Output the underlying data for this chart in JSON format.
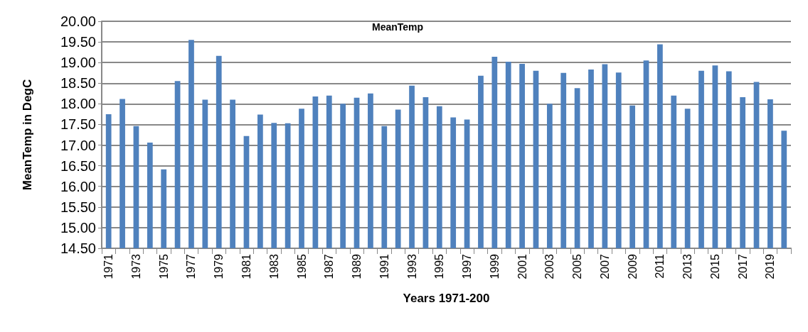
{
  "chart_data": {
    "type": "bar",
    "title": "MeanTemp",
    "xlabel": "Years 1971-200",
    "ylabel": "MeanTemp in DegC",
    "categories": [
      "1971",
      null,
      "1973",
      null,
      "1975",
      null,
      "1977",
      null,
      "1979",
      null,
      "1981",
      null,
      "1983",
      null,
      "1985",
      null,
      "1987",
      null,
      "1989",
      null,
      "1991",
      null,
      "1993",
      null,
      "1995",
      null,
      "1997",
      null,
      "1999",
      null,
      "2001",
      null,
      "2003",
      null,
      "2005",
      null,
      "2007",
      null,
      "2009",
      null,
      "2011",
      null,
      "2013",
      null,
      "2015",
      null,
      "2017",
      null,
      "2019",
      null
    ],
    "values": [
      17.75,
      18.12,
      17.46,
      17.06,
      16.41,
      18.55,
      19.55,
      18.1,
      19.16,
      18.1,
      17.22,
      17.74,
      17.54,
      17.53,
      17.88,
      18.18,
      18.2,
      18.0,
      18.15,
      18.25,
      17.46,
      17.86,
      18.44,
      18.16,
      17.94,
      17.67,
      17.62,
      18.68,
      19.14,
      19.02,
      18.97,
      18.8,
      18.0,
      18.75,
      18.38,
      18.83,
      18.96,
      18.76,
      17.96,
      19.05,
      19.44,
      18.2,
      17.88,
      18.8,
      18.93,
      18.79,
      18.16,
      18.53,
      18.11,
      17.35
    ],
    "color": "#4f81bd",
    "ylim": [
      14.5,
      20
    ],
    "yticks": [
      {
        "value": 14.5,
        "label": "14.50"
      },
      {
        "value": 15,
        "label": "15.00"
      },
      {
        "value": 15.5,
        "label": "15.50"
      },
      {
        "value": 16,
        "label": "16.00"
      },
      {
        "value": 16.5,
        "label": "16.50"
      },
      {
        "value": 17,
        "label": "17.00"
      },
      {
        "value": 17.5,
        "label": "17.50"
      },
      {
        "value": 18,
        "label": "18.00"
      },
      {
        "value": 18.5,
        "label": "18.50"
      },
      {
        "value": 19,
        "label": "19.00"
      },
      {
        "value": 19.5,
        "label": "19.50"
      },
      {
        "value": 20,
        "label": "20.00"
      }
    ],
    "grid": "y"
  }
}
